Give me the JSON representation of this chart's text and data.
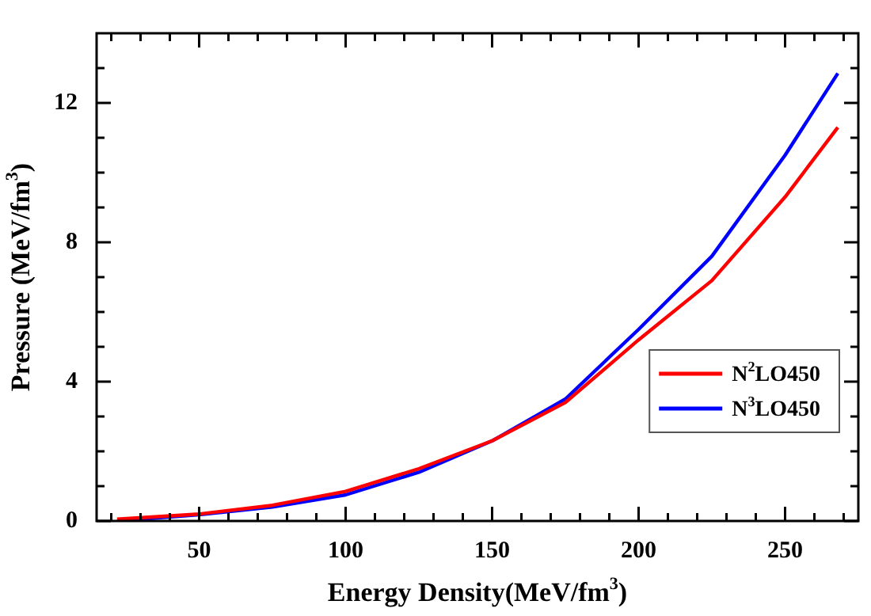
{
  "chart_data": {
    "type": "line",
    "xlabel": "Energy Density(MeV/fm$^{3}$)",
    "ylabel": "Pressure (MeV/fm$^{3}$)",
    "xlim": [
      15,
      275
    ],
    "ylim": [
      0,
      14
    ],
    "xticks": [
      {
        "value": 20,
        "label": null
      },
      {
        "value": 30,
        "label": null
      },
      {
        "value": 40,
        "label": null
      },
      50,
      {
        "value": 60,
        "label": null
      },
      {
        "value": 70,
        "label": null
      },
      {
        "value": 80,
        "label": null
      },
      {
        "value": 90,
        "label": null
      },
      100,
      {
        "value": 110,
        "label": null
      },
      {
        "value": 120,
        "label": null
      },
      {
        "value": 130,
        "label": null
      },
      {
        "value": 140,
        "label": null
      },
      150,
      {
        "value": 160,
        "label": null
      },
      {
        "value": 170,
        "label": null
      },
      {
        "value": 180,
        "label": null
      },
      {
        "value": 190,
        "label": null
      },
      200,
      {
        "value": 210,
        "label": null
      },
      {
        "value": 220,
        "label": null
      },
      {
        "value": 230,
        "label": null
      },
      {
        "value": 240,
        "label": null
      },
      250,
      {
        "value": 260,
        "label": null
      },
      {
        "value": 270,
        "label": null
      }
    ],
    "yticks": [
      0,
      {
        "value": 1,
        "label": null
      },
      {
        "value": 2,
        "label": null
      },
      {
        "value": 3,
        "label": null
      },
      4,
      {
        "value": 5,
        "label": null
      },
      {
        "value": 6,
        "label": null
      },
      {
        "value": 7,
        "label": null
      },
      8,
      {
        "value": 9,
        "label": null
      },
      {
        "value": 10,
        "label": null
      },
      {
        "value": 11,
        "label": null
      },
      12,
      {
        "value": 13,
        "label": null
      }
    ],
    "legend": "bottom right",
    "marker": "none",
    "line_style": "solid",
    "grid": false,
    "series": [
      {
        "name": "N$^{2}$LO450",
        "color": "#ff0000",
        "x": [
          22,
          50,
          75,
          100,
          125,
          150,
          175,
          200,
          225,
          250,
          268
        ],
        "values": [
          0.05,
          0.2,
          0.45,
          0.85,
          1.5,
          2.3,
          3.4,
          5.2,
          6.9,
          9.3,
          11.3
        ]
      },
      {
        "name": "N$^{3}$LO450",
        "color": "#0000ff",
        "x": [
          22,
          50,
          75,
          100,
          125,
          150,
          175,
          200,
          225,
          250,
          268
        ],
        "values": [
          0.0,
          0.18,
          0.4,
          0.75,
          1.4,
          2.3,
          3.5,
          5.5,
          7.6,
          10.5,
          12.85
        ]
      }
    ]
  }
}
